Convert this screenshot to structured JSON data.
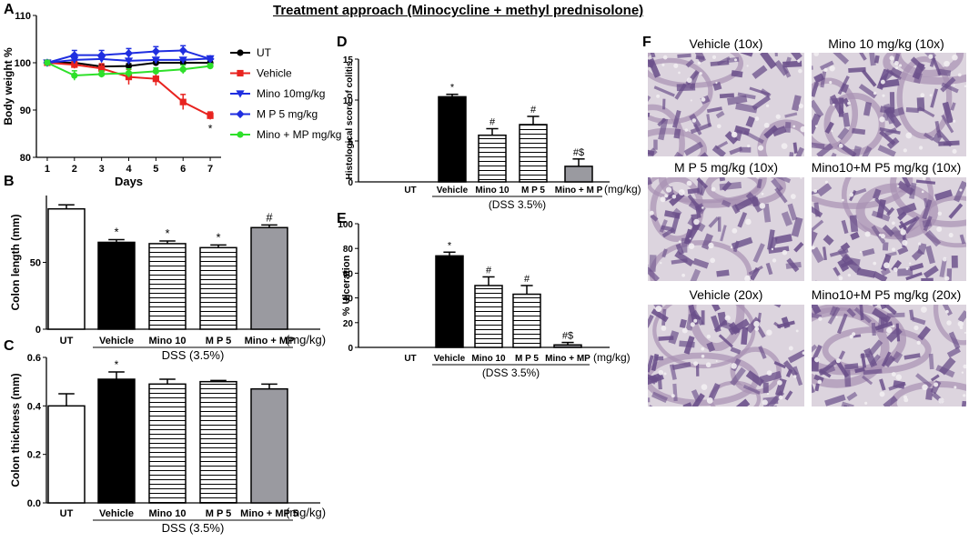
{
  "figure": {
    "title": "Treatment approach (Minocycline  + methyl prednisolone)",
    "panel_labels": [
      "A",
      "B",
      "C",
      "D",
      "E",
      "F"
    ]
  },
  "chart_data": [
    {
      "id": "A",
      "type": "line",
      "ylabel": "Body weight %",
      "xlabel": "Days",
      "x": [
        1,
        2,
        3,
        4,
        5,
        6,
        7
      ],
      "ylim": [
        80,
        110
      ],
      "yticks": [
        80,
        90,
        100,
        110
      ],
      "series": [
        {
          "name": "UT",
          "color": "#000000",
          "marker": "circle",
          "values": [
            100,
            100,
            99.2,
            99.3,
            100,
            100,
            100
          ],
          "err": [
            0.4,
            0.4,
            0.5,
            0.5,
            0.4,
            0.4,
            0.4
          ]
        },
        {
          "name": "Vehicle",
          "color": "#e8231f",
          "marker": "square",
          "values": [
            100,
            99.6,
            98.8,
            97.0,
            96.6,
            91.7,
            88.8
          ],
          "err": [
            0.5,
            0.8,
            1.0,
            1.6,
            1.4,
            1.6,
            0.8
          ]
        },
        {
          "name": "Mino 10mg/kg",
          "color": "#1f2ee0",
          "marker": "triangle-down",
          "values": [
            100,
            100.6,
            100.8,
            100.4,
            100.6,
            100.6,
            100.9
          ],
          "err": [
            0.5,
            0.6,
            0.5,
            0.5,
            0.5,
            0.5,
            0.5
          ]
        },
        {
          "name": "M P 5 mg/kg",
          "color": "#1f2ee0",
          "marker": "diamond",
          "values": [
            100,
            101.6,
            101.6,
            102.0,
            102.4,
            102.6,
            100.8
          ],
          "err": [
            0.5,
            1.0,
            1.0,
            1.0,
            1.0,
            1.0,
            0.6
          ]
        },
        {
          "name": "Mino + MP mg/kg",
          "color": "#2ee02a",
          "marker": "circle",
          "values": [
            100,
            97.3,
            97.6,
            97.8,
            98.2,
            98.6,
            99.3
          ],
          "err": [
            0.5,
            1.0,
            0.7,
            0.9,
            0.7,
            0.9,
            0.5
          ]
        }
      ],
      "annotations": [
        {
          "x": 7,
          "text": "*"
        }
      ]
    },
    {
      "id": "B",
      "type": "bar",
      "ylabel": "Colon length (mm)",
      "categories": [
        "UT",
        "Vehicle",
        "Mino 10",
        "M P 5",
        "Mino + MP"
      ],
      "values": [
        90,
        65,
        64,
        61,
        76
      ],
      "err": [
        3,
        2,
        2,
        2,
        2
      ],
      "fills": [
        "white",
        "black",
        "stripes",
        "stripes",
        "gray"
      ],
      "marks": [
        "",
        "*",
        "*",
        "*",
        "#"
      ],
      "ylim": [
        0,
        100
      ],
      "yticks": [
        0,
        50
      ],
      "unit_label": "(mg/kg)",
      "group_label": "DSS (3.5%)"
    },
    {
      "id": "C",
      "type": "bar",
      "ylabel": "Colon thickness (mm)",
      "categories": [
        "UT",
        "Vehicle",
        "Mino 10",
        "M P 5",
        "Mino + MP 5"
      ],
      "values": [
        0.4,
        0.51,
        0.49,
        0.5,
        0.47
      ],
      "err": [
        0.05,
        0.03,
        0.02,
        0.005,
        0.02
      ],
      "fills": [
        "white",
        "black",
        "stripes",
        "stripes",
        "gray"
      ],
      "marks": [
        "",
        "*",
        "",
        "",
        ""
      ],
      "ylim": [
        0,
        0.6
      ],
      "yticks": [
        0.0,
        0.2,
        0.4,
        0.6
      ],
      "unit_label": "(mg/kg)",
      "group_label": "DSS (3.5%)"
    },
    {
      "id": "D",
      "type": "bar",
      "ylabel": "Histological score of colitis",
      "categories": [
        "UT",
        "Vehicle",
        "Mino 10",
        "M P 5",
        "Mino + M P"
      ],
      "values": [
        0,
        10.4,
        5.7,
        7.0,
        1.9
      ],
      "err": [
        0,
        0.3,
        0.8,
        1.0,
        0.9
      ],
      "fills": [
        "white",
        "black",
        "stripes",
        "stripes",
        "gray"
      ],
      "marks": [
        "",
        "*",
        "#",
        "#",
        "#$"
      ],
      "ylim": [
        0,
        15
      ],
      "yticks": [
        0,
        5,
        10,
        15
      ],
      "unit_label": "(mg/kg)",
      "group_label": "(DSS 3.5%)"
    },
    {
      "id": "E",
      "type": "bar",
      "ylabel": "% Ulceration",
      "categories": [
        "UT",
        "Vehicle",
        "Mino 10",
        "M P 5",
        "Mino + MP"
      ],
      "values": [
        0,
        74,
        50,
        43,
        2
      ],
      "err": [
        0,
        3,
        7,
        7,
        2
      ],
      "fills": [
        "white",
        "black",
        "stripes",
        "stripes",
        "gray"
      ],
      "marks": [
        "",
        "*",
        "#",
        "#",
        "#$"
      ],
      "ylim": [
        0,
        100
      ],
      "yticks": [
        0,
        20,
        40,
        60,
        80,
        100
      ],
      "unit_label": "(mg/kg)",
      "group_label": "(DSS 3.5%)"
    }
  ],
  "micrographs": [
    {
      "caption": "Vehicle (10x)"
    },
    {
      "caption": "Mino 10 mg/kg (10x)"
    },
    {
      "caption": "M  P  5 mg/kg (10x)"
    },
    {
      "caption": "Mino10+M P5 mg/kg (10x)"
    },
    {
      "caption": "Vehicle (20x)"
    },
    {
      "caption": "Mino10+M P5 mg/kg (20x)"
    }
  ]
}
